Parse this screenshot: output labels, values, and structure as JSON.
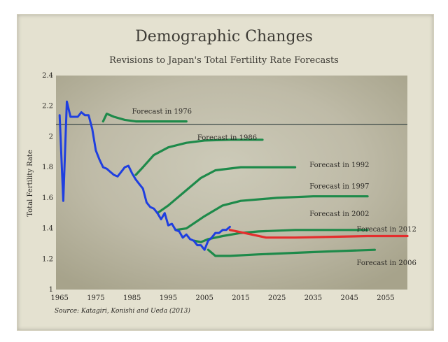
{
  "chart_data": {
    "type": "line",
    "title": "Demographic Changes",
    "subtitle": "Revisions to Japan's Total Fertility Rate Forecasts",
    "ylabel": "Total Fertility Rate",
    "xlabel": "",
    "source": "Source: Katagiri, Konishi and Ueda (2013)",
    "xlim": [
      1964,
      2061
    ],
    "ylim": [
      1,
      2.4
    ],
    "x_ticks": [
      1965,
      1975,
      1985,
      1995,
      2005,
      2015,
      2025,
      2035,
      2045,
      2055
    ],
    "y_ticks": [
      {
        "value": 1,
        "label": "1"
      },
      {
        "value": 1.2,
        "label": "1.2"
      },
      {
        "value": 1.4,
        "label": "1.4"
      },
      {
        "value": 1.6,
        "label": "1.6"
      },
      {
        "value": 1.8,
        "label": "1.8"
      },
      {
        "value": 2,
        "label": "2"
      },
      {
        "value": 2.2,
        "label": "2.2"
      },
      {
        "value": 2.4,
        "label": "2.4"
      }
    ],
    "reference_line": {
      "y": 2.08
    },
    "actual": {
      "color": "#1f3fe0",
      "points": [
        [
          1965,
          2.14
        ],
        [
          1966,
          1.58
        ],
        [
          1967,
          2.23
        ],
        [
          1968,
          2.13
        ],
        [
          1969,
          2.13
        ],
        [
          1970,
          2.13
        ],
        [
          1971,
          2.16
        ],
        [
          1972,
          2.14
        ],
        [
          1973,
          2.14
        ],
        [
          1974,
          2.05
        ],
        [
          1975,
          1.91
        ],
        [
          1976,
          1.85
        ],
        [
          1977,
          1.8
        ],
        [
          1978,
          1.79
        ],
        [
          1979,
          1.77
        ],
        [
          1980,
          1.75
        ],
        [
          1981,
          1.74
        ],
        [
          1982,
          1.77
        ],
        [
          1983,
          1.8
        ],
        [
          1984,
          1.81
        ],
        [
          1985,
          1.76
        ],
        [
          1986,
          1.72
        ],
        [
          1987,
          1.69
        ],
        [
          1988,
          1.66
        ],
        [
          1989,
          1.57
        ],
        [
          1990,
          1.54
        ],
        [
          1991,
          1.53
        ],
        [
          1992,
          1.5
        ],
        [
          1993,
          1.46
        ],
        [
          1994,
          1.5
        ],
        [
          1995,
          1.42
        ],
        [
          1996,
          1.43
        ],
        [
          1997,
          1.39
        ],
        [
          1998,
          1.38
        ],
        [
          1999,
          1.34
        ],
        [
          2000,
          1.36
        ],
        [
          2001,
          1.33
        ],
        [
          2002,
          1.32
        ],
        [
          2003,
          1.29
        ],
        [
          2004,
          1.29
        ],
        [
          2005,
          1.26
        ],
        [
          2006,
          1.32
        ],
        [
          2007,
          1.34
        ],
        [
          2008,
          1.37
        ],
        [
          2009,
          1.37
        ],
        [
          2010,
          1.39
        ],
        [
          2011,
          1.39
        ],
        [
          2012,
          1.41
        ]
      ]
    },
    "forecasts": [
      {
        "name": "Forecast in 1976",
        "color": "#1e8a4a",
        "label_x": 1985,
        "label_y": 2.15,
        "points": [
          [
            1977,
            2.1
          ],
          [
            1978,
            2.15
          ],
          [
            1980,
            2.13
          ],
          [
            1983,
            2.11
          ],
          [
            1986,
            2.1
          ],
          [
            1990,
            2.1
          ],
          [
            2000,
            2.1
          ]
        ]
      },
      {
        "name": "Forecast in 1986",
        "color": "#1e8a4a",
        "label_x": 2003,
        "label_y": 1.98,
        "points": [
          [
            1986,
            1.75
          ],
          [
            1988,
            1.8
          ],
          [
            1991,
            1.88
          ],
          [
            1995,
            1.93
          ],
          [
            2000,
            1.96
          ],
          [
            2005,
            1.975
          ],
          [
            2012,
            1.98
          ],
          [
            2021,
            1.98
          ]
        ]
      },
      {
        "name": "Forecast in 1992",
        "color": "#1e8a4a",
        "label_x": 2034,
        "label_y": 1.8,
        "points": [
          [
            1992,
            1.5
          ],
          [
            1995,
            1.55
          ],
          [
            2000,
            1.65
          ],
          [
            2004,
            1.73
          ],
          [
            2008,
            1.78
          ],
          [
            2015,
            1.8
          ],
          [
            2030,
            1.8
          ]
        ]
      },
      {
        "name": "Forecast in 1997",
        "color": "#1e8a4a",
        "label_x": 2034,
        "label_y": 1.66,
        "points": [
          [
            1997,
            1.39
          ],
          [
            2000,
            1.4
          ],
          [
            2005,
            1.48
          ],
          [
            2010,
            1.55
          ],
          [
            2015,
            1.58
          ],
          [
            2025,
            1.6
          ],
          [
            2035,
            1.61
          ],
          [
            2050,
            1.61
          ]
        ]
      },
      {
        "name": "Forecast in 2002",
        "color": "#1e8a4a",
        "label_x": 2034,
        "label_y": 1.48,
        "points": [
          [
            2002,
            1.32
          ],
          [
            2004,
            1.31
          ],
          [
            2006,
            1.33
          ],
          [
            2010,
            1.35
          ],
          [
            2015,
            1.37
          ],
          [
            2020,
            1.38
          ],
          [
            2030,
            1.39
          ],
          [
            2040,
            1.39
          ],
          [
            2050,
            1.39
          ]
        ]
      },
      {
        "name": "Forecast in 2006",
        "color": "#1e8a4a",
        "label_x": 2047,
        "label_y": 1.16,
        "points": [
          [
            2006,
            1.26
          ],
          [
            2008,
            1.22
          ],
          [
            2012,
            1.22
          ],
          [
            2020,
            1.23
          ],
          [
            2030,
            1.24
          ],
          [
            2040,
            1.25
          ],
          [
            2052,
            1.26
          ]
        ]
      },
      {
        "name": "Forecast in 2012",
        "color": "#e42d2d",
        "label_x": 2047,
        "label_y": 1.38,
        "points": [
          [
            2012,
            1.39
          ],
          [
            2014,
            1.38
          ],
          [
            2018,
            1.36
          ],
          [
            2022,
            1.34
          ],
          [
            2030,
            1.34
          ],
          [
            2040,
            1.345
          ],
          [
            2050,
            1.35
          ],
          [
            2061,
            1.35
          ]
        ]
      }
    ]
  }
}
